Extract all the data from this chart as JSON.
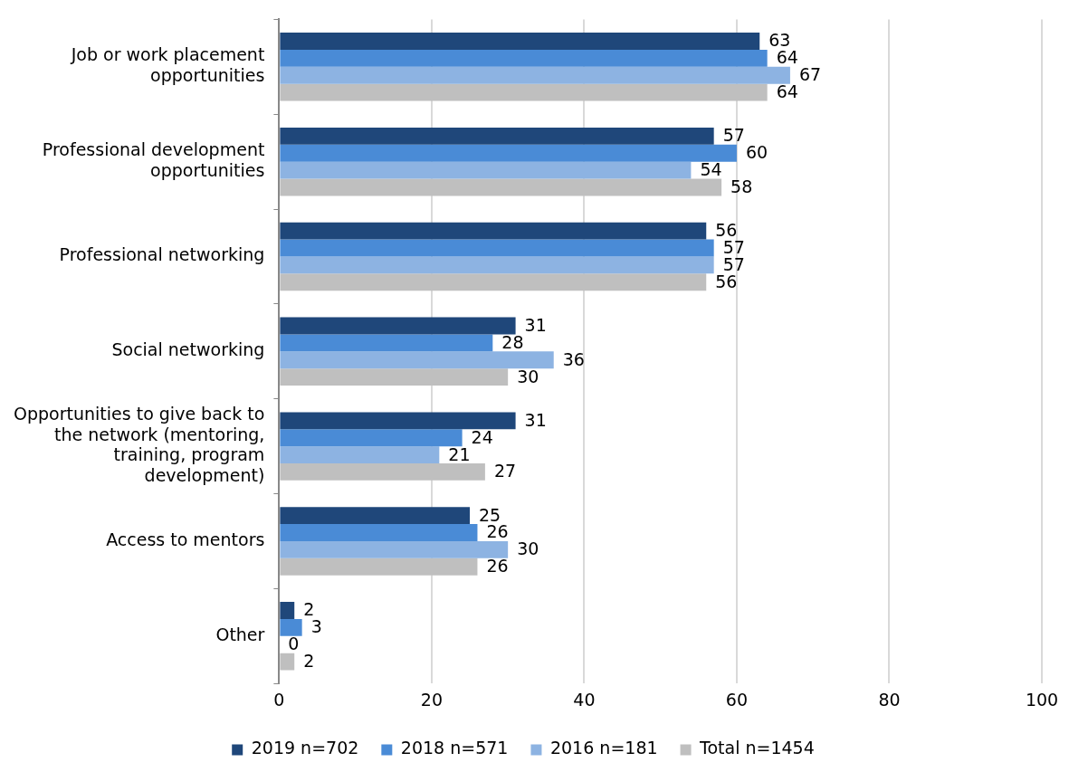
{
  "chart_data": {
    "type": "bar",
    "orientation": "horizontal",
    "categories": [
      "Job or work placement opportunities",
      "Professional development opportunities",
      "Professional networking",
      "Social networking",
      "Opportunities to give back to the network (mentoring, training, program development)",
      "Access to mentors",
      "Other"
    ],
    "series": [
      {
        "name": "2019 n=702",
        "color": "#1f477a",
        "values": [
          63,
          57,
          56,
          31,
          31,
          25,
          2
        ]
      },
      {
        "name": "2018 n=571",
        "color": "#4a8bd6",
        "values": [
          64,
          60,
          57,
          28,
          24,
          26,
          3
        ]
      },
      {
        "name": "2016 n=181",
        "color": "#8db3e2",
        "values": [
          67,
          54,
          57,
          36,
          21,
          30,
          0
        ]
      },
      {
        "name": "Total n=1454",
        "color": "#bfbfbf",
        "values": [
          64,
          58,
          56,
          30,
          27,
          26,
          2
        ]
      }
    ],
    "xlim": [
      0,
      100
    ],
    "xticks": [
      0,
      20,
      40,
      60,
      80,
      100
    ],
    "grid": "x",
    "legend": "bottom",
    "data_labels": true
  }
}
